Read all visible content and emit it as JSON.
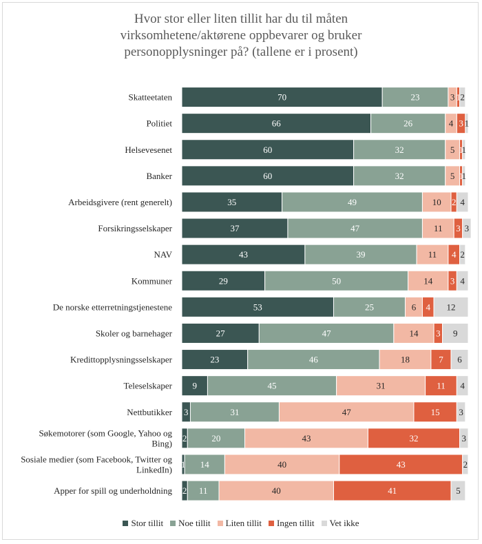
{
  "chart_data": {
    "type": "bar",
    "orientation": "horizontal",
    "stacked": true,
    "title_lines": [
      "Hvor stor eller liten tillit har du til måten",
      "virksomhetene/aktørene  oppbevarer og bruker",
      "personopplysninger på? (tallene er i prosent)"
    ],
    "categories": [
      "Skatteetaten",
      "Politiet",
      "Helsevesenet",
      "Banker",
      "Arbeidsgivere (rent generelt)",
      "Forsikringsselskaper",
      "NAV",
      "Kommuner",
      "De norske etterretningstjenestene",
      "Skoler og barnehager",
      "Kredittopplysningsselskaper",
      "Teleselskaper",
      "Nettbutikker",
      "Søkemotorer (som Google, Yahoo og Bing)",
      "Sosiale medier (som Facebook, Twitter og LinkedIn)",
      "Apper for spill og underholdning"
    ],
    "category_lines": [
      [
        "Skatteetaten"
      ],
      [
        "Politiet"
      ],
      [
        "Helsevesenet"
      ],
      [
        "Banker"
      ],
      [
        "Arbeidsgivere (rent generelt)"
      ],
      [
        "Forsikringsselskaper"
      ],
      [
        "NAV"
      ],
      [
        "Kommuner"
      ],
      [
        "De norske etterretningstjenestene"
      ],
      [
        "Skoler og barnehager"
      ],
      [
        "Kredittopplysningsselskaper"
      ],
      [
        "Teleselskaper"
      ],
      [
        "Nettbutikker"
      ],
      [
        "Søkemotorer (som Google, Yahoo og",
        "Bing)"
      ],
      [
        "Sosiale medier (som Facebook, Twitter og",
        "LinkedIn)"
      ],
      [
        "Apper for spill og underholdning"
      ]
    ],
    "series": [
      {
        "name": "Stor tillit",
        "color": "#3b5653",
        "label_color": "#ffffff",
        "values": [
          70,
          66,
          60,
          60,
          35,
          37,
          43,
          29,
          53,
          27,
          23,
          9,
          3,
          2,
          1,
          2
        ]
      },
      {
        "name": "Noe tillit",
        "color": "#89a294",
        "label_color": "#ffffff",
        "values": [
          23,
          26,
          32,
          32,
          49,
          47,
          39,
          50,
          25,
          47,
          46,
          45,
          31,
          20,
          14,
          11
        ]
      },
      {
        "name": "Liten tillit",
        "color": "#f2b8a4",
        "label_color": "#262626",
        "values": [
          3,
          4,
          5,
          5,
          10,
          11,
          11,
          14,
          6,
          14,
          18,
          31,
          47,
          43,
          40,
          40
        ]
      },
      {
        "name": "Ingen tillit",
        "color": "#df6040",
        "label_color": "#ffffff",
        "values": [
          1,
          3,
          1,
          1,
          2,
          3,
          4,
          3,
          4,
          3,
          7,
          11,
          15,
          32,
          43,
          41
        ]
      },
      {
        "name": "Vet ikke",
        "color": "#d9d9d9",
        "label_color": "#262626",
        "values": [
          2,
          1,
          1,
          1,
          4,
          3,
          2,
          4,
          12,
          9,
          6,
          4,
          3,
          3,
          2,
          5
        ]
      }
    ],
    "xlim": [
      0,
      100
    ],
    "legend_position": "bottom",
    "grid": false
  }
}
